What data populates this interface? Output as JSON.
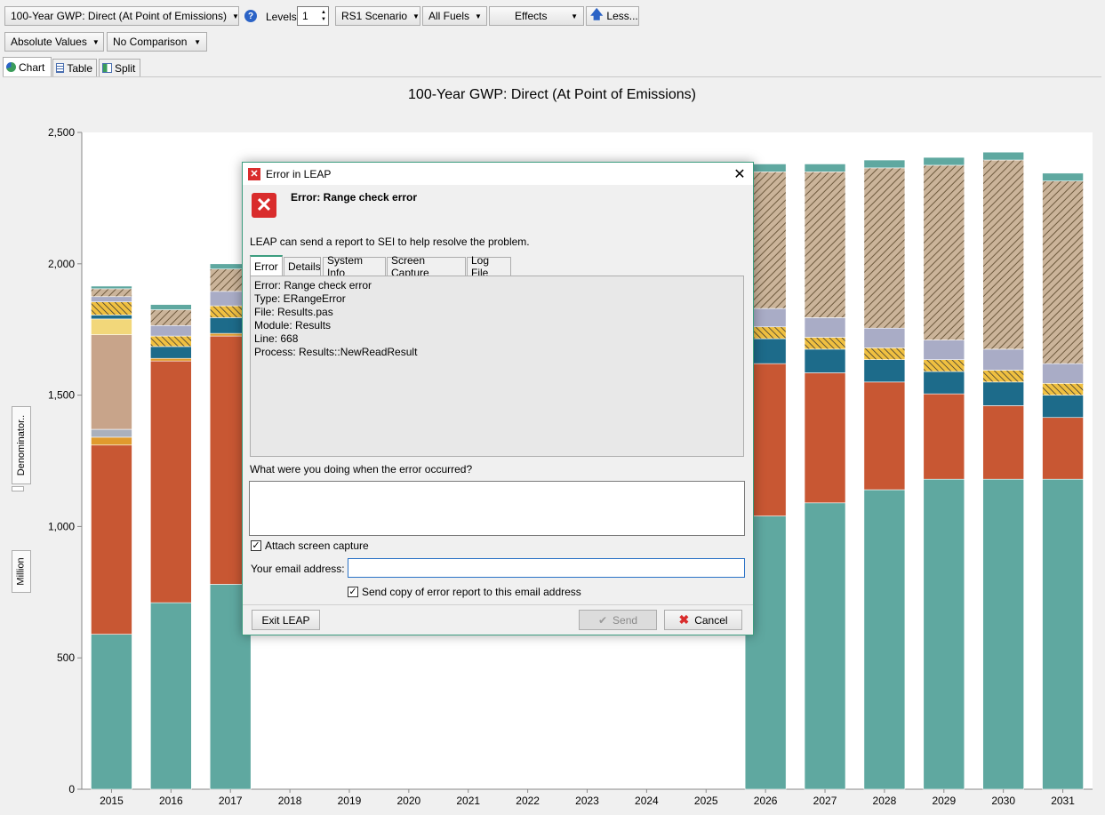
{
  "toolbar": {
    "variable": "100-Year GWP: Direct (At Point of Emissions)",
    "levels_label": "Levels:",
    "levels_value": "1",
    "scenario": "RS1 Scenario",
    "fuels": "All Fuels",
    "effects": "Effects",
    "less": "Less...",
    "values_mode": "Absolute Values",
    "comparison": "No Comparison"
  },
  "view_tabs": [
    {
      "label": "Chart",
      "active": true
    },
    {
      "label": "Table",
      "active": false
    },
    {
      "label": "Split",
      "active": false
    }
  ],
  "side_buttons": {
    "denominator": "Denominator..",
    "unit": "Million"
  },
  "chart_data": {
    "type": "bar",
    "stacked": true,
    "title": "100-Year GWP: Direct (At Point of Emissions)",
    "categories": [
      "2015",
      "2016",
      "2017",
      "2018",
      "2019",
      "2020",
      "2021",
      "2022",
      "2023",
      "2024",
      "2025",
      "2026",
      "2027",
      "2028",
      "2029",
      "2030",
      "2031"
    ],
    "ylim": [
      0,
      2500
    ],
    "yticks": [
      0,
      500,
      1000,
      1500,
      2000,
      2500
    ],
    "ytick_labels": [
      "0",
      "500",
      "1,000",
      "1,500",
      "2,000",
      "2,500"
    ],
    "grid": false,
    "series": [
      {
        "color": "#5fa8a0",
        "values": [
          590,
          710,
          780,
          null,
          null,
          null,
          null,
          null,
          null,
          null,
          null,
          1040,
          1090,
          1140,
          1180,
          1180,
          1180
        ]
      },
      {
        "color": "#c85733",
        "values": [
          720,
          920,
          945,
          null,
          null,
          null,
          null,
          null,
          null,
          null,
          null,
          580,
          495,
          410,
          325,
          280,
          235
        ]
      },
      {
        "color": "#e09a2d",
        "values": [
          30,
          10,
          10,
          null,
          null,
          null,
          null,
          null,
          null,
          null,
          null,
          0,
          0,
          0,
          0,
          0,
          0
        ]
      },
      {
        "color": "#aab0bc",
        "values": [
          30,
          0,
          0,
          null,
          null,
          null,
          null,
          null,
          null,
          null,
          null,
          0,
          0,
          0,
          0,
          0,
          0
        ]
      },
      {
        "color": "#c8a48a",
        "values": [
          360,
          0,
          0,
          null,
          null,
          null,
          null,
          null,
          null,
          null,
          null,
          0,
          0,
          0,
          0,
          0,
          0
        ]
      },
      {
        "color": "#f2d77a",
        "values": [
          60,
          0,
          0,
          null,
          null,
          null,
          null,
          null,
          null,
          null,
          null,
          0,
          0,
          0,
          0,
          0,
          0
        ]
      },
      {
        "color": "#1d6b8a",
        "values": [
          15,
          45,
          60,
          null,
          null,
          null,
          null,
          null,
          null,
          null,
          null,
          95,
          90,
          85,
          85,
          90,
          85
        ]
      },
      {
        "color": "#dd7a3a",
        "values": [
          50,
          40,
          45,
          null,
          null,
          null,
          null,
          null,
          null,
          null,
          null,
          45,
          45,
          45,
          45,
          45,
          45
        ]
      },
      {
        "color": "#a9acc6",
        "values": [
          20,
          40,
          55,
          null,
          null,
          null,
          null,
          null,
          null,
          null,
          null,
          70,
          75,
          75,
          75,
          80,
          75
        ]
      },
      {
        "color": "#a9906a",
        "values": [
          30,
          60,
          85,
          null,
          null,
          null,
          null,
          null,
          null,
          null,
          null,
          520,
          555,
          610,
          665,
          720,
          695
        ]
      },
      {
        "color": "#5fa8a0",
        "values": [
          10,
          20,
          20,
          null,
          null,
          null,
          null,
          null,
          null,
          null,
          null,
          30,
          30,
          30,
          30,
          30,
          30
        ]
      }
    ]
  },
  "dialog": {
    "title": "Error in LEAP",
    "heading": "Error: Range check error",
    "message": "LEAP can send a report to SEI to help resolve the problem.",
    "tabs": [
      {
        "label": "Error",
        "active": true
      },
      {
        "label": "Details",
        "active": false
      },
      {
        "label": "System Info",
        "active": false
      },
      {
        "label": "Screen Capture",
        "active": false
      },
      {
        "label": "Log File",
        "active": false
      }
    ],
    "error_lines": [
      "Error: Range check error",
      "Type: ERangeError",
      "File: Results.pas",
      "Module: Results",
      "Line: 668",
      "Process: Results::NewReadResult"
    ],
    "doing_label": "What were you doing when the error occurred?",
    "doing_value": "",
    "attach_label": "Attach screen capture",
    "attach_checked": true,
    "email_label": "Your email address:",
    "email_value": "",
    "send_copy_label": "Send copy of error report to this email address",
    "send_copy_checked": true,
    "exit_button": "Exit LEAP",
    "send_button": "Send",
    "cancel_button": "Cancel"
  }
}
